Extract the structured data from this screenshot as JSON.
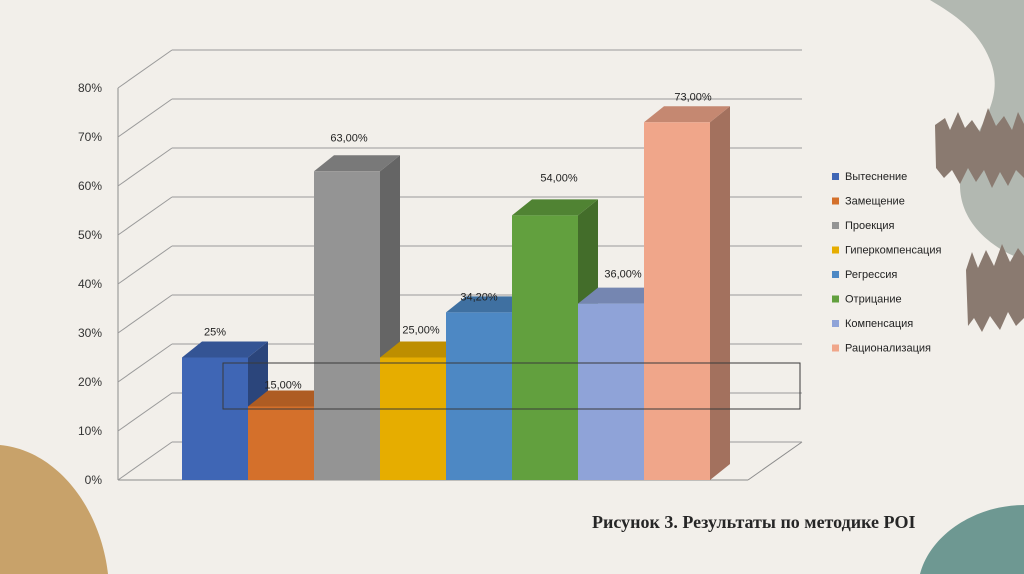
{
  "caption": "Рисунок 3. Результаты по методике POI",
  "chart_data": {
    "type": "bar",
    "title": "",
    "xlabel": "",
    "ylabel": "",
    "ylim": [
      0,
      80
    ],
    "y_ticks": [
      "0%",
      "10%",
      "20%",
      "30%",
      "40%",
      "50%",
      "60%",
      "70%",
      "80%"
    ],
    "grid": true,
    "legend_position": "right",
    "series": [
      {
        "name": "Вытеснение",
        "value": 25,
        "label": "25%",
        "color": "#3f66b5"
      },
      {
        "name": "Замещение",
        "value": 15,
        "label": "15,00%",
        "color": "#d4702b"
      },
      {
        "name": "Проекция",
        "value": 63,
        "label": "63,00%",
        "color": "#949494"
      },
      {
        "name": "Гиперкомпенсация",
        "value": 25,
        "label": "25,00%",
        "color": "#e6ad00"
      },
      {
        "name": "Регрессия",
        "value": 34.2,
        "label": "34,20%",
        "color": "#4d88c4"
      },
      {
        "name": "Отрицание",
        "value": 54,
        "label": "54,00%",
        "color": "#62a03e"
      },
      {
        "name": "Компенсация",
        "value": 36,
        "label": "36,00%",
        "color": "#8fa3d8"
      },
      {
        "name": "Рационализация",
        "value": 73,
        "label": "73,00%",
        "color": "#f0a68a"
      }
    ]
  }
}
